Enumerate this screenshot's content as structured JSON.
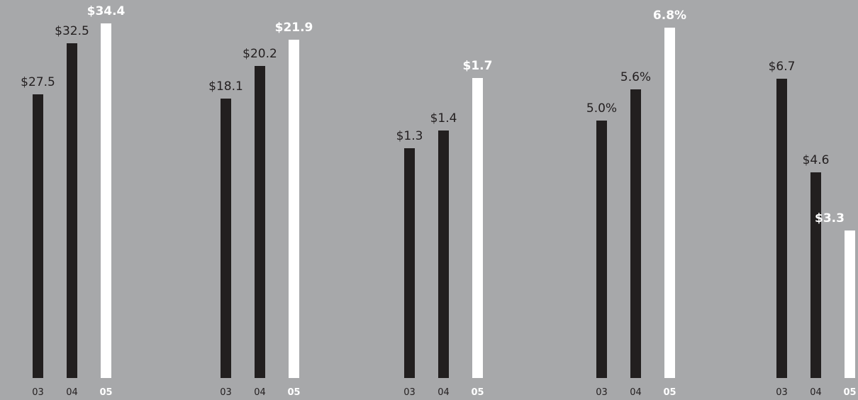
{
  "colors": {
    "background": "#a7a8aa",
    "prior_years_bar": "#221f1f",
    "current_year_bar": "#ffffff"
  },
  "chart_data": [
    {
      "type": "bar",
      "categories": [
        "03",
        "04",
        "05"
      ],
      "values": [
        27.5,
        32.5,
        34.4
      ],
      "value_labels": [
        "$27.5",
        "$32.5",
        "$34.4"
      ],
      "highlight_index": 2,
      "ylim": [
        0,
        36
      ]
    },
    {
      "type": "bar",
      "categories": [
        "03",
        "04",
        "05"
      ],
      "values": [
        18.1,
        20.2,
        21.9
      ],
      "value_labels": [
        "$18.1",
        "$20.2",
        "$21.9"
      ],
      "highlight_index": 2,
      "ylim": [
        0,
        24
      ]
    },
    {
      "type": "bar",
      "categories": [
        "03",
        "04",
        "05"
      ],
      "values": [
        1.3,
        1.4,
        1.7
      ],
      "value_labels": [
        "$1.3",
        "$1.4",
        "$1.7"
      ],
      "highlight_index": 2,
      "ylim": [
        0,
        2.1
      ]
    },
    {
      "type": "bar",
      "categories": [
        "03",
        "04",
        "05"
      ],
      "values": [
        5.0,
        5.6,
        6.8
      ],
      "value_labels": [
        "5.0%",
        "5.6%",
        "6.8%"
      ],
      "highlight_index": 2,
      "ylim": [
        0,
        7.2
      ]
    },
    {
      "type": "bar",
      "categories": [
        "03",
        "04",
        "05"
      ],
      "values": [
        6.7,
        4.6,
        3.3
      ],
      "value_labels": [
        "$6.7",
        "$4.6",
        "$3.3"
      ],
      "highlight_index": 2,
      "ylim": [
        0,
        8.3
      ]
    }
  ]
}
